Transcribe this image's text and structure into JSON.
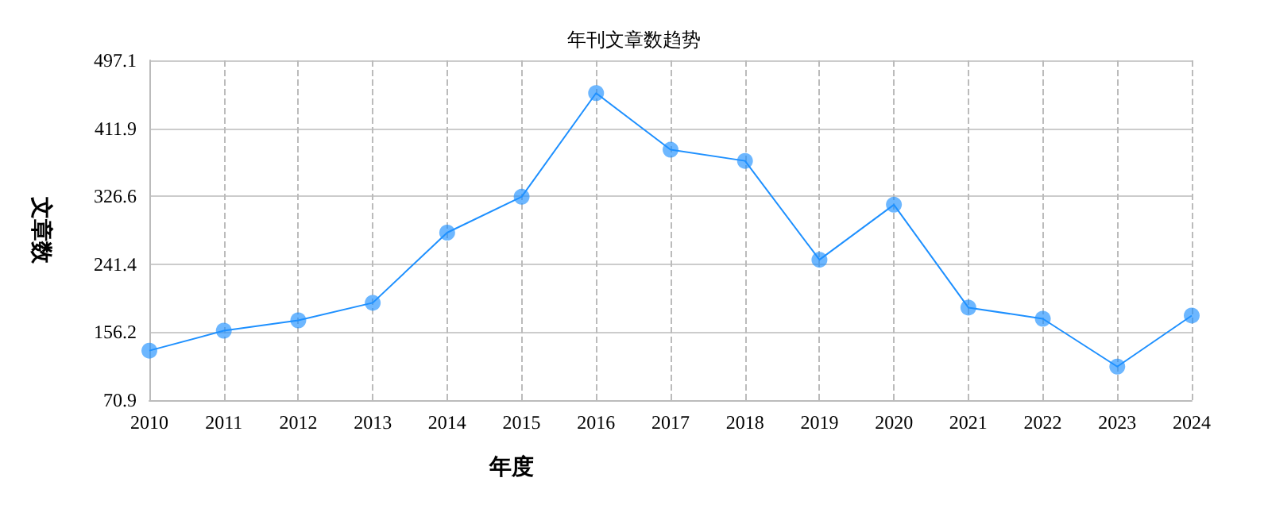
{
  "chart_data": {
    "type": "line",
    "title": "年刊文章数趋势",
    "xlabel": "年度",
    "ylabel": "文章数",
    "categories": [
      "2010",
      "2011",
      "2012",
      "2013",
      "2014",
      "2015",
      "2016",
      "2017",
      "2018",
      "2019",
      "2020",
      "2021",
      "2022",
      "2023",
      "2024"
    ],
    "series": [
      {
        "color": "#1e90ff",
        "values": [
          133,
          158,
          171,
          193,
          281,
          326,
          456,
          385,
          371,
          247,
          316,
          187,
          173,
          113,
          177
        ]
      }
    ],
    "ylim": [
      70.9,
      497.1
    ],
    "yticks": [
      70.9,
      156.2,
      241.4,
      326.6,
      411.9,
      497.1
    ],
    "grid": true,
    "marker": "circle",
    "line_style": "solid"
  }
}
